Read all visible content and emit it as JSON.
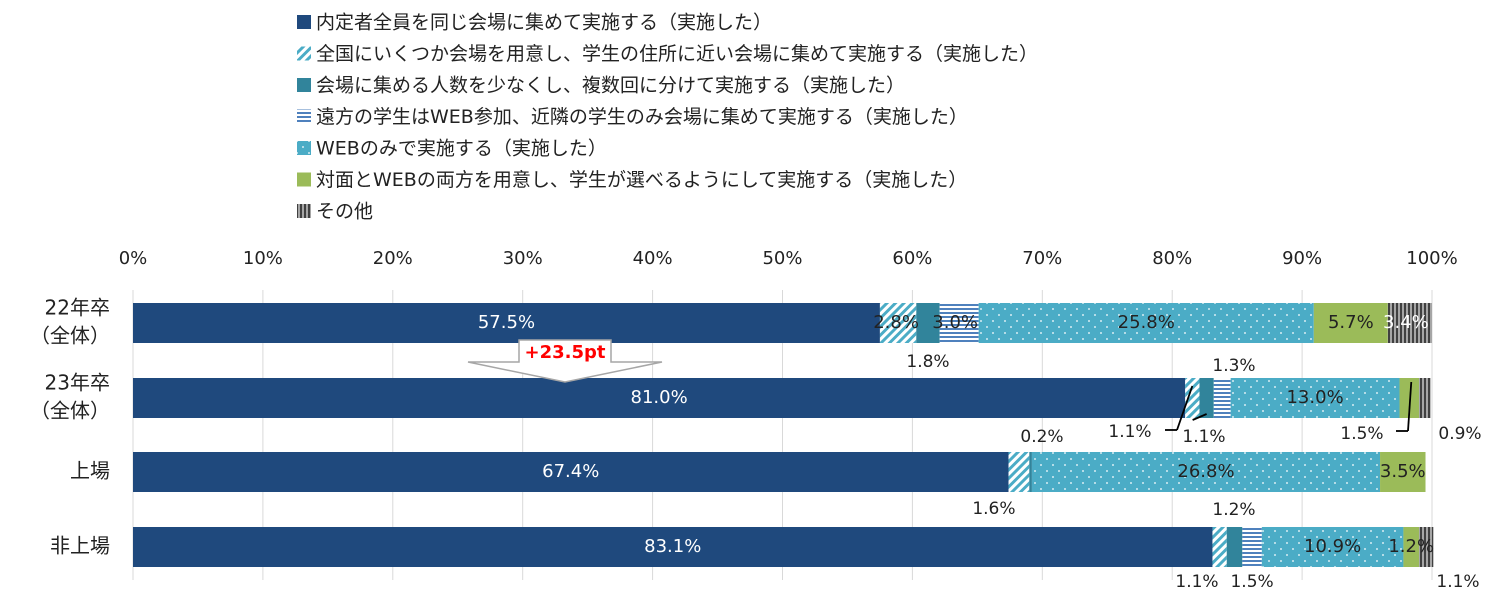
{
  "chart_data": {
    "type": "bar",
    "orientation": "horizontal",
    "stacked": "percent",
    "xlim": [
      0,
      100
    ],
    "x_ticks": [
      "0%",
      "10%",
      "20%",
      "30%",
      "40%",
      "50%",
      "60%",
      "70%",
      "80%",
      "90%",
      "100%"
    ],
    "grid": true,
    "legend_position": "top",
    "categories": [
      [
        "22年卒",
        "（全体）"
      ],
      [
        "23年卒",
        "（全体）"
      ],
      [
        "上場"
      ],
      [
        "非上場"
      ]
    ],
    "series": [
      {
        "name": "内定者全員を同じ会場に集めて実施する（実施した）",
        "color": "#1F497D",
        "pattern": "solid",
        "values": [
          57.5,
          81.0,
          67.4,
          83.1
        ],
        "labels": [
          "57.5%",
          "81.0%",
          "67.4%",
          "83.1%"
        ]
      },
      {
        "name": "全国にいくつか会場を用意し、学生の住所に近い会場に集めて実施する（実施した）",
        "color": "#4BACC6",
        "pattern": "diagonal",
        "values": [
          2.8,
          1.1,
          1.6,
          1.1
        ],
        "labels": [
          "2.8%",
          "1.1%",
          "1.6%",
          "1.1%"
        ]
      },
      {
        "name": "会場に集める人数を少なくし、複数回に分けて実施する（実施した）",
        "color": "#31849B",
        "pattern": "solid",
        "values": [
          1.8,
          1.1,
          0.2,
          1.2
        ],
        "labels": [
          "1.8%",
          "1.1%",
          "0.2%",
          "1.2%"
        ]
      },
      {
        "name": "遠方の学生はWEB参加、近隣の学生のみ会場に集めて実施する（実施した）",
        "color": "#4F81BD",
        "pattern": "horizontal",
        "values": [
          3.0,
          1.3,
          0.0,
          1.5
        ],
        "labels": [
          "3.0%",
          "1.3%",
          "",
          "1.5%"
        ]
      },
      {
        "name": "WEBのみで実施する（実施した）",
        "color": "#4BACC6",
        "pattern": "dots",
        "values": [
          25.8,
          13.0,
          26.8,
          10.9
        ],
        "labels": [
          "25.8%",
          "13.0%",
          "26.8%",
          "10.9%"
        ]
      },
      {
        "name": "対面とWEBの両方を用意し、学生が選べるようにして実施する（実施した）",
        "color": "#9BBB59",
        "pattern": "solid",
        "values": [
          5.7,
          1.5,
          3.5,
          1.2
        ],
        "labels": [
          "5.7%",
          "1.5%",
          "3.5%",
          "1.2%"
        ]
      },
      {
        "name": "その他",
        "color": "#595959",
        "pattern": "vertical",
        "values": [
          3.4,
          0.9,
          0.0,
          1.1
        ],
        "labels": [
          "3.4%",
          "0.9%",
          "",
          "1.1%"
        ]
      }
    ],
    "annotation": {
      "text": "+23.5pt",
      "color": "#FF0000"
    }
  }
}
